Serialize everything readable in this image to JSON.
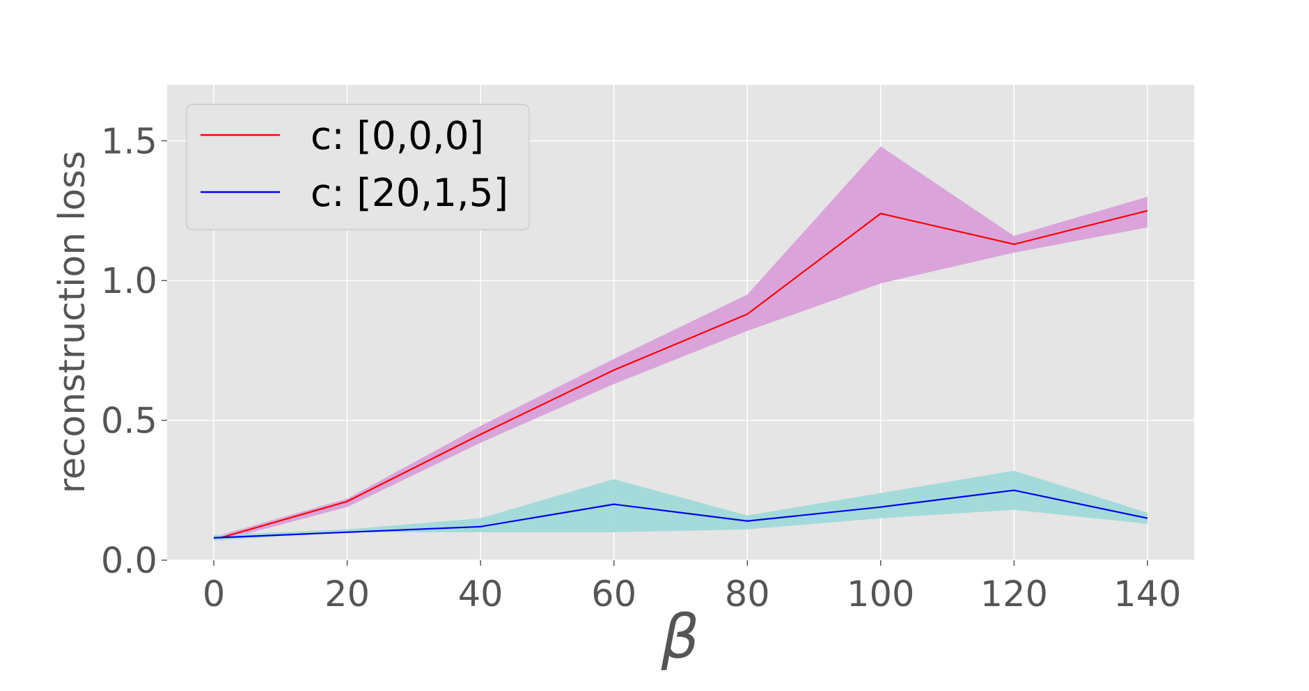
{
  "chart_data": {
    "type": "line",
    "title": "",
    "xlabel": "β",
    "ylabel": "reconstruction loss",
    "x": [
      1,
      20,
      40,
      60,
      80,
      100,
      120,
      140
    ],
    "x_ticks": [
      0,
      20,
      40,
      60,
      80,
      100,
      120,
      140
    ],
    "x_tick_labels": [
      "0",
      "20",
      "40",
      "60",
      "80",
      "100",
      "120",
      "140"
    ],
    "y_ticks": [
      0.0,
      0.5,
      1.0,
      1.5
    ],
    "y_tick_labels": [
      "0.0",
      "0.5",
      "1.0",
      "1.5"
    ],
    "xlim": [
      -7,
      147
    ],
    "ylim": [
      0,
      1.7
    ],
    "grid": true,
    "legend_position": "top-left",
    "series": [
      {
        "name": "c: [0,0,0]",
        "color": "#ff0000",
        "band_color": "#d9a0d9",
        "x": [
          1,
          20,
          40,
          60,
          80,
          100,
          120,
          140
        ],
        "values": [
          0.08,
          0.21,
          0.45,
          0.68,
          0.88,
          1.24,
          1.13,
          1.25
        ],
        "lower": [
          0.07,
          0.19,
          0.42,
          0.63,
          0.82,
          0.99,
          1.1,
          1.19
        ],
        "upper": [
          0.09,
          0.22,
          0.48,
          0.72,
          0.95,
          1.48,
          1.16,
          1.3
        ]
      },
      {
        "name": "c: [20,1,5]",
        "color": "#0000ee",
        "band_color": "#a0d9d9",
        "x": [
          0,
          20,
          40,
          60,
          80,
          100,
          120,
          140
        ],
        "values": [
          0.08,
          0.1,
          0.12,
          0.2,
          0.14,
          0.19,
          0.25,
          0.15
        ],
        "lower": [
          0.07,
          0.1,
          0.1,
          0.1,
          0.11,
          0.15,
          0.18,
          0.13
        ],
        "upper": [
          0.09,
          0.11,
          0.15,
          0.29,
          0.16,
          0.24,
          0.32,
          0.17
        ]
      }
    ]
  }
}
